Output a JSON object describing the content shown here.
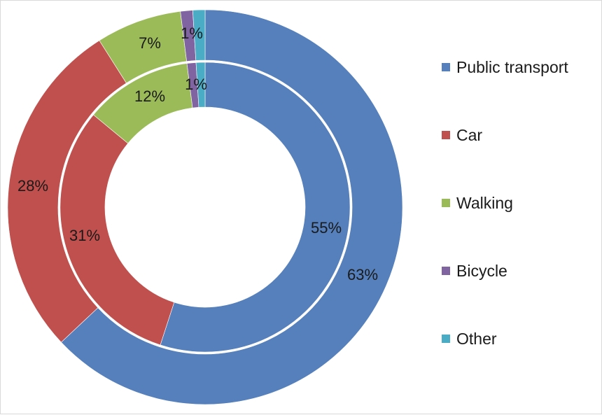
{
  "chart_data": {
    "type": "pie",
    "subtype": "donut",
    "categories": [
      "Public transport",
      "Car",
      "Walking",
      "Bicycle",
      "Other"
    ],
    "colors": [
      "#5580bc",
      "#c0504d",
      "#9bbb59",
      "#8064a2",
      "#4bacc6"
    ],
    "series": [
      {
        "values": [
          55,
          31,
          12,
          1,
          1
        ],
        "labels": [
          "55%",
          "31%",
          "12%",
          "",
          "1%"
        ]
      },
      {
        "values": [
          63,
          28,
          7,
          1,
          1
        ],
        "labels": [
          "63%",
          "28%",
          "7%",
          "",
          "1%"
        ]
      }
    ],
    "legend_position": "right"
  }
}
